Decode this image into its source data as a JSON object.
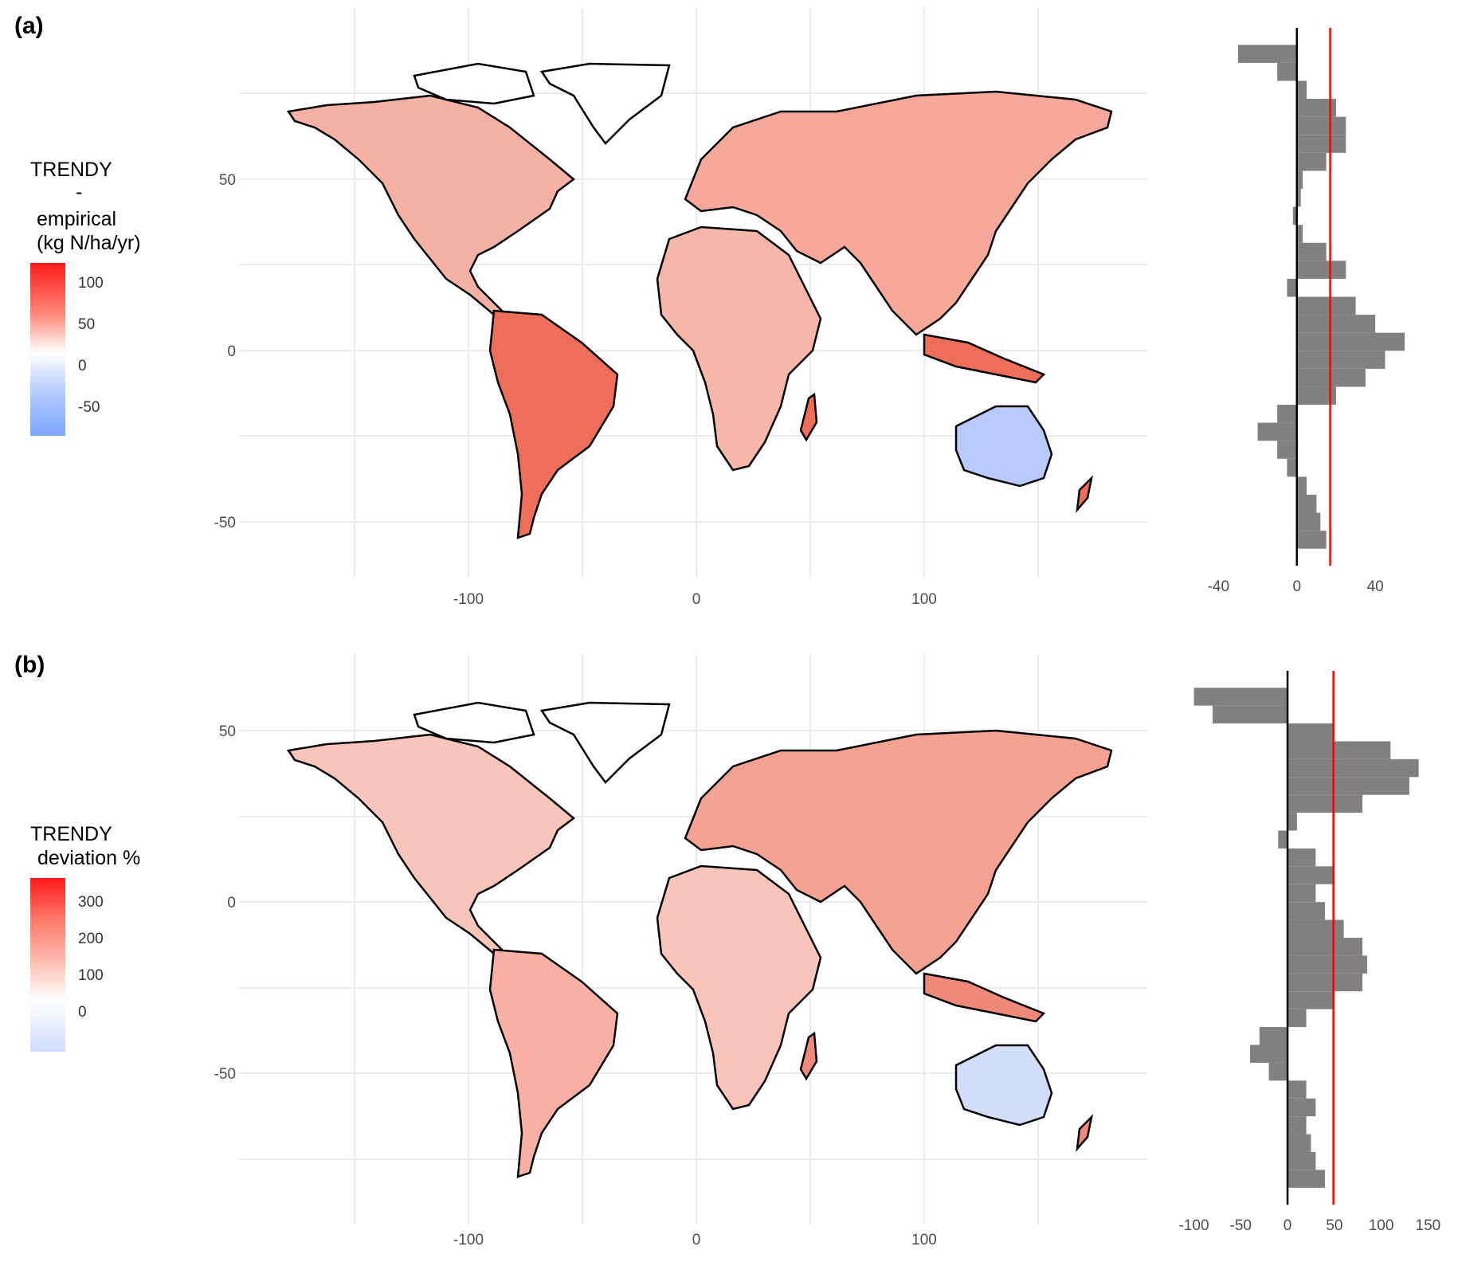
{
  "panels": [
    {
      "label": "(a)",
      "legend": {
        "title_lines": [
          "TRENDY",
          "-",
          "empirical",
          "(kg N/ha/yr)"
        ],
        "ticks": [
          "100",
          "50",
          "0",
          "-50"
        ],
        "tick_values": [
          100,
          50,
          0,
          -50
        ],
        "range": [
          -80,
          125
        ],
        "colors": {
          "low": "#7aa6ff",
          "mid": "#ffffff",
          "high": "#ff1a1a"
        }
      },
      "map": {
        "lon_ticks": [
          "-100",
          "0",
          "100"
        ],
        "lon_values": [
          -100,
          0,
          100
        ],
        "lat_ticks": [
          "50",
          "0",
          "-50"
        ],
        "lat_values": [
          50,
          0,
          -50
        ]
      },
      "histogram": {
        "x_ticks": [
          "-40",
          "0",
          "40"
        ],
        "x_values": [
          -40,
          0,
          40
        ],
        "xlim": [
          -58,
          70
        ],
        "mean_line": 17
      }
    },
    {
      "label": "(b)",
      "legend": {
        "title_lines": [
          "TRENDY",
          " deviation %"
        ],
        "ticks": [
          "300",
          "200",
          "100",
          "0"
        ],
        "tick_values": [
          300,
          200,
          100,
          0
        ],
        "range": [
          -100,
          370
        ],
        "colors": {
          "low": "#cfdcff",
          "mid": "#ffffff",
          "high": "#ff1a1a"
        }
      },
      "map": {
        "lon_ticks": [
          "-100",
          "0",
          "100"
        ],
        "lon_values": [
          -100,
          0,
          100
        ],
        "lat_ticks": [
          "50",
          "0",
          "-50"
        ],
        "lat_values": [
          50,
          0,
          -50
        ]
      },
      "histogram": {
        "x_ticks": [
          "-100",
          "-50",
          "0",
          "50",
          "100",
          "150"
        ],
        "x_values": [
          -100,
          -50,
          0,
          50,
          100,
          150
        ],
        "xlim": [
          -120,
          165
        ],
        "mean_line": 49
      }
    }
  ],
  "chart_data": [
    {
      "type": "bar",
      "orientation": "horizontal",
      "lat": [
        80,
        75,
        70,
        65,
        60,
        55,
        50,
        45,
        40,
        35,
        30,
        25,
        20,
        15,
        10,
        5,
        0,
        -5,
        -10,
        -15,
        -20,
        -25,
        -30,
        -35,
        -40,
        -45,
        -50,
        -55
      ],
      "values": [
        -30,
        -10,
        5,
        20,
        25,
        25,
        15,
        3,
        2,
        -2,
        3,
        15,
        25,
        -5,
        30,
        40,
        55,
        45,
        35,
        20,
        -10,
        -20,
        -10,
        -5,
        5,
        10,
        12,
        15
      ],
      "mean": 17
    },
    {
      "type": "bar",
      "orientation": "horizontal",
      "lat": [
        80,
        75,
        70,
        65,
        60,
        55,
        50,
        45,
        40,
        35,
        30,
        25,
        20,
        15,
        10,
        5,
        0,
        -5,
        -10,
        -15,
        -20,
        -25,
        -30,
        -35,
        -40,
        -45,
        -50,
        -55
      ],
      "values": [
        -100,
        -80,
        50,
        110,
        140,
        130,
        80,
        10,
        -10,
        30,
        50,
        30,
        40,
        60,
        80,
        85,
        80,
        50,
        20,
        -30,
        -40,
        -20,
        20,
        30,
        20,
        25,
        30,
        40
      ],
      "mean": 49
    }
  ]
}
